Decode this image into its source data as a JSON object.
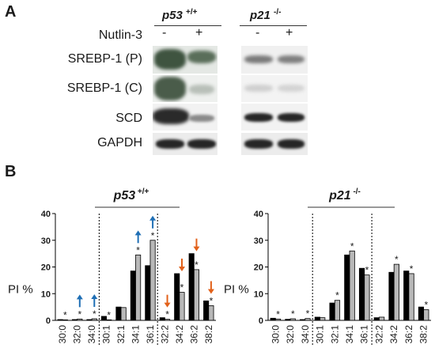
{
  "panelA": {
    "letter": "A",
    "genotypes": [
      {
        "name": "p53",
        "sup": "+/+"
      },
      {
        "name": "p21",
        "sup": "-/-"
      }
    ],
    "treatment": {
      "label": "Nutlin-3",
      "states": [
        "-",
        "+",
        "-",
        "+"
      ]
    },
    "rows": [
      "SREBP-1 (P)",
      "SREBP-1 (C)",
      "SCD",
      "GAPDH"
    ]
  },
  "panelB": {
    "letter": "B",
    "colors": {
      "control": "#000000",
      "nutlin": "#b8b8b8",
      "up_arrow": "#1f6fb5",
      "down_arrow": "#e2611a"
    }
  },
  "chart_data": [
    {
      "type": "bar",
      "title": "p53",
      "title_sup": "+/+",
      "ylabel": "PI %",
      "ylim": [
        0,
        40
      ],
      "yticks": [
        0,
        10,
        20,
        30,
        40
      ],
      "categories": [
        "30:0",
        "32:0",
        "34:0",
        "30:1",
        "32:1",
        "34:1",
        "36:1",
        "32:2",
        "34:2",
        "36:2",
        "38:2"
      ],
      "group_dividers_after": [
        2,
        6
      ],
      "series": [
        {
          "values": [
            0.3,
            0.3,
            0.3,
            1.5,
            5,
            18.5,
            20.5,
            1.0,
            17.5,
            25,
            7.3
          ]
        },
        {
          "values": [
            0.2,
            0.5,
            0.6,
            0.2,
            4.8,
            24.5,
            30,
            0.4,
            10.5,
            19,
            5.5
          ]
        }
      ],
      "significance": [
        "*",
        "*",
        "*",
        "*",
        "",
        "*",
        "*",
        "*",
        "*",
        "*",
        "*"
      ],
      "arrows": [
        "",
        "up",
        "up",
        "",
        "",
        "up",
        "up",
        "down",
        "down",
        "down",
        "down"
      ]
    },
    {
      "type": "bar",
      "title": "p21",
      "title_sup": "-/-",
      "ylabel": "PI %",
      "ylim": [
        0,
        40
      ],
      "yticks": [
        0,
        10,
        20,
        30,
        40
      ],
      "categories": [
        "30:0",
        "32:0",
        "34:0",
        "30:1",
        "32:1",
        "34:1",
        "36:1",
        "32:2",
        "34:2",
        "36:2",
        "38:2"
      ],
      "group_dividers_after": [
        2,
        6
      ],
      "series": [
        {
          "values": [
            0.8,
            0.4,
            0.3,
            1.2,
            6.5,
            24.5,
            19.5,
            1.0,
            18,
            18.5,
            5.0
          ]
        },
        {
          "values": [
            0.5,
            0.6,
            0.7,
            1.0,
            7.5,
            26,
            17,
            1.2,
            21,
            17.5,
            4.0
          ]
        }
      ],
      "significance": [
        "*",
        "*",
        "*",
        "",
        "*",
        "*",
        "*",
        "",
        "*",
        "*",
        "*"
      ],
      "arrows": [
        "",
        "",
        "",
        "",
        "",
        "",
        "",
        "",
        "",
        "",
        ""
      ]
    }
  ]
}
